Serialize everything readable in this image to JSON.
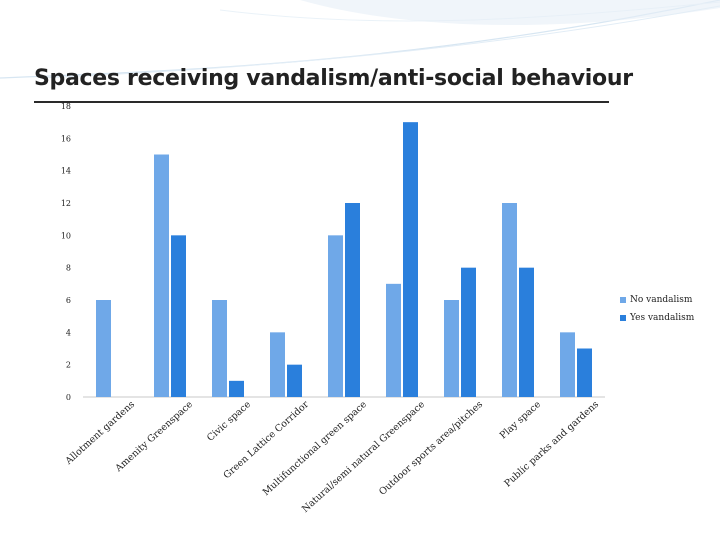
{
  "page": {
    "title": "Spaces receiving vandalism/anti-social behaviour"
  },
  "chart_data": {
    "type": "bar",
    "title": "Spaces receiving vandalism/anti-social behaviour",
    "xlabel": "",
    "ylabel": "",
    "ylim": [
      0,
      18
    ],
    "yticks": [
      0,
      2,
      4,
      6,
      8,
      10,
      12,
      14,
      16,
      18
    ],
    "grid": false,
    "legend_position": "right",
    "categories": [
      "Allotment gardens",
      "Amenity Greenspace",
      "Civic space",
      "Green Lattice Corridor",
      "Multifunctional green space",
      "Natural/semi natural Greenspace",
      "Outdoor sports area/pitches",
      "Play space",
      "Public parks and gardens"
    ],
    "series": [
      {
        "name": "No vandalism",
        "color": "#6fa8e8",
        "values": [
          6,
          15,
          6,
          4,
          10,
          7,
          6,
          12,
          4
        ]
      },
      {
        "name": "Yes vandalism",
        "color": "#2a7fdc",
        "values": [
          0,
          10,
          1,
          2,
          12,
          17,
          8,
          8,
          3
        ]
      }
    ]
  }
}
